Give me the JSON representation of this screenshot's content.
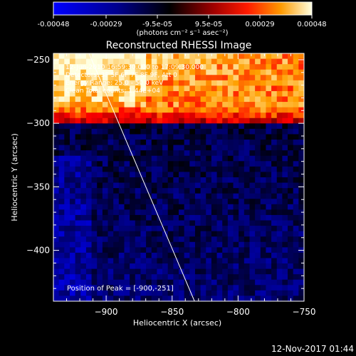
{
  "colorbar": {
    "ticks": [
      "-0.00048",
      "-0.00029",
      "-9.5e-05",
      "9.5e-05",
      "0.00029",
      "0.00048"
    ],
    "unit_label": "(photons cm⁻² s⁻¹ asec⁻²)"
  },
  "title": "Reconstructed RHESSI Image",
  "annotations": {
    "time": "12-Jun-2010 16:59:30.000 to 17:09:30.000",
    "detectors": "Detectors: 3F 5F 6F 7F 8F 9F, Att 0",
    "energy": "Energy Range: 25.0 - 50.0 keV",
    "clean": "Clean     Total counts: 1.44E+04",
    "peak": "Position of Peak = [-900,-251]"
  },
  "footer_timestamp": "12-Nov-2017 01:44",
  "chart_data": {
    "type": "heatmap",
    "title": "Reconstructed RHESSI Image",
    "xlabel": "Heliocentric X (arcsec)",
    "ylabel": "Heliocentric Y (arcsec)",
    "xlim": [
      -940,
      -750
    ],
    "ylim": [
      -440,
      -245
    ],
    "x_ticks": [
      -900,
      -850,
      -800,
      -750
    ],
    "y_ticks": [
      -250,
      -300,
      -350,
      -400
    ],
    "x_tick_labels": [
      "−900",
      "−850",
      "−800",
      "−750"
    ],
    "y_tick_labels": [
      "−250",
      "−300",
      "−350",
      "−400"
    ],
    "value_range": [
      -0.00048,
      0.00048
    ],
    "peak_position": [
      -900,
      -251
    ],
    "limb_line": [
      [
        -913,
        -245
      ],
      [
        -833,
        -440
      ]
    ],
    "colormap": [
      "#0000ff",
      "#00008c",
      "#000000",
      "#8c0000",
      "#ff0000",
      "#ffa000",
      "#ffffe0"
    ]
  }
}
